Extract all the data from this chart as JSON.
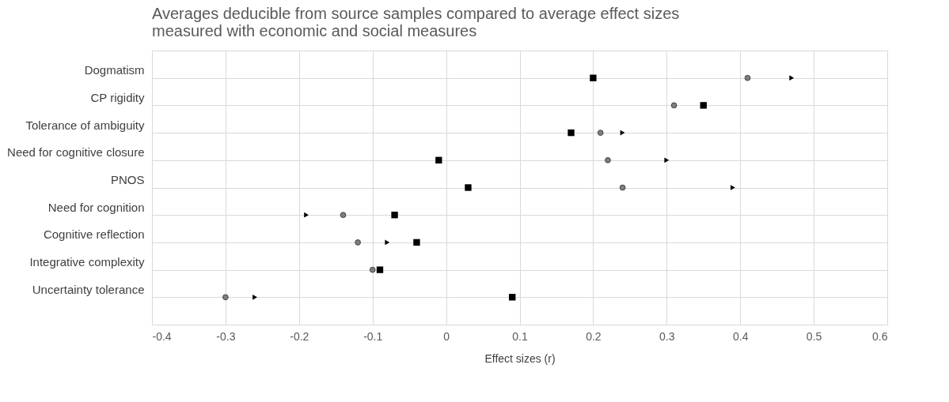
{
  "chart_data": {
    "type": "scatter",
    "title": "Averages deducible from source samples compared to average effect sizes\nmeasured with economic and social measures",
    "xlabel": "Effect sizes (r)",
    "orientation": "horizontal",
    "categories": [
      "Dogmatism",
      "CP rigidity",
      "Tolerance of ambiguity",
      "Need for cognitive closure",
      "PNOS",
      "Need for cognition",
      "Cognitive reflection ",
      "Integrative complexity",
      "Uncertainty tolerance"
    ],
    "series": [
      {
        "color": "#000000",
        "marker": "square",
        "values": [
          0.2,
          0.35,
          0.17,
          -0.01,
          0.03,
          -0.07,
          -0.04,
          -0.09,
          0.09
        ]
      },
      {
        "color": "#7f7f7f",
        "marker": "circle",
        "values": [
          0.41,
          0.31,
          0.21,
          0.22,
          0.24,
          -0.14,
          -0.12,
          -0.1,
          -0.3
        ]
      },
      {
        "color": "#000000",
        "marker": "triangle",
        "values": [
          0.47,
          null,
          0.24,
          0.3,
          0.39,
          -0.19,
          -0.08,
          null,
          -0.26
        ]
      }
    ],
    "xlim": [
      -0.4,
      0.6
    ],
    "xticks": [
      -0.4,
      -0.3,
      -0.2,
      -0.1,
      0,
      0.1,
      0.2,
      0.3,
      0.4,
      0.5,
      0.6
    ],
    "grid": true
  }
}
